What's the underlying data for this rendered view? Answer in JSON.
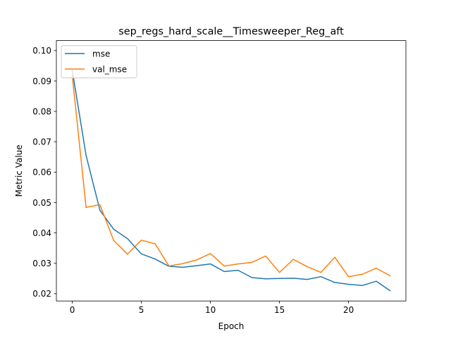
{
  "chart_data": {
    "type": "line",
    "title": "sep_regs_hard_scale__Timesweeper_Reg_aft",
    "xlabel": "Epoch",
    "ylabel": "Metric Value",
    "xlim": [
      -1.15,
      24.15
    ],
    "ylim": [
      0.0176,
      0.1033
    ],
    "xticks": [
      0,
      5,
      10,
      15,
      20
    ],
    "yticks": [
      0.02,
      0.03,
      0.04,
      0.05,
      0.06,
      0.07,
      0.08,
      0.09,
      0.1
    ],
    "ytick_labels": [
      "0.02",
      "0.03",
      "0.04",
      "0.05",
      "0.06",
      "0.07",
      "0.08",
      "0.09",
      "0.10"
    ],
    "legend_position": "top-left",
    "grid": false,
    "x": [
      0,
      1,
      2,
      3,
      4,
      5,
      6,
      7,
      8,
      9,
      10,
      11,
      12,
      13,
      14,
      15,
      16,
      17,
      18,
      19,
      20,
      21,
      22,
      23
    ],
    "series": [
      {
        "name": "mse",
        "color": "#1f77b4",
        "values": [
          0.0935,
          0.0655,
          0.0475,
          0.0412,
          0.0381,
          0.0331,
          0.0314,
          0.029,
          0.0287,
          0.0292,
          0.0298,
          0.0273,
          0.0277,
          0.0253,
          0.0249,
          0.025,
          0.0251,
          0.0247,
          0.0256,
          0.0237,
          0.0231,
          0.0227,
          0.0241,
          0.021
        ]
      },
      {
        "name": "val_mse",
        "color": "#ff7f0e",
        "values": [
          0.0918,
          0.0484,
          0.0493,
          0.0375,
          0.033,
          0.0376,
          0.0364,
          0.0291,
          0.0299,
          0.0311,
          0.0332,
          0.0291,
          0.0298,
          0.0303,
          0.0324,
          0.027,
          0.0313,
          0.0289,
          0.027,
          0.032,
          0.0256,
          0.0264,
          0.0284,
          0.0259
        ]
      }
    ]
  }
}
